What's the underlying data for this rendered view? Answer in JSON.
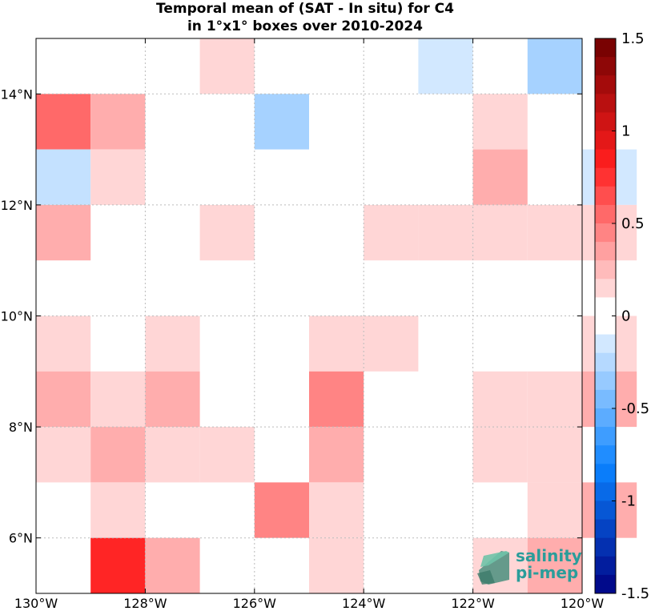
{
  "chart_data": {
    "type": "heatmap",
    "title_lines": [
      "Temporal mean of (SAT - In situ) for C4",
      "in 1°x1° boxes over 2010-2024"
    ],
    "x_ticks": [
      {
        "value": -130,
        "label": "130°W"
      },
      {
        "value": -128,
        "label": "128°W"
      },
      {
        "value": -126,
        "label": "126°W"
      },
      {
        "value": -124,
        "label": "124°W"
      },
      {
        "value": -122,
        "label": "122°W"
      },
      {
        "value": -120,
        "label": "120°W"
      }
    ],
    "y_ticks": [
      {
        "value": 6,
        "label": "6°N"
      },
      {
        "value": 8,
        "label": "8°N"
      },
      {
        "value": 10,
        "label": "10°N"
      },
      {
        "value": 12,
        "label": "12°N"
      },
      {
        "value": 14,
        "label": "14°N"
      }
    ],
    "xlim": [
      -130,
      -120
    ],
    "ylim": [
      5,
      15
    ],
    "grid": true,
    "colorbar": {
      "range": [
        -1.5,
        1.5
      ],
      "ticks": [
        {
          "value": 1.5,
          "label": "1.5"
        },
        {
          "value": 1.0,
          "label": "1"
        },
        {
          "value": 0.5,
          "label": "0.5"
        },
        {
          "value": 0.0,
          "label": "0"
        },
        {
          "value": -0.5,
          "label": "-0.5"
        },
        {
          "value": -1.0,
          "label": "-1"
        },
        {
          "value": -1.5,
          "label": "-1.5"
        }
      ]
    },
    "cells": [
      {
        "lon": -127,
        "lat": 14,
        "value": 0.15
      },
      {
        "lon": -123,
        "lat": 14,
        "value": -0.15
      },
      {
        "lon": -121,
        "lat": 14,
        "value": -0.3
      },
      {
        "lon": -130,
        "lat": 13,
        "value": 0.55
      },
      {
        "lon": -129,
        "lat": 13,
        "value": 0.3
      },
      {
        "lon": -126,
        "lat": 13,
        "value": -0.3
      },
      {
        "lon": -122,
        "lat": 13,
        "value": 0.15
      },
      {
        "lon": -130,
        "lat": 12,
        "value": -0.2
      },
      {
        "lon": -129,
        "lat": 12,
        "value": 0.15
      },
      {
        "lon": -122,
        "lat": 12,
        "value": 0.3
      },
      {
        "lon": -120,
        "lat": 12,
        "value": -0.15
      },
      {
        "lon": -130,
        "lat": 11,
        "value": 0.3
      },
      {
        "lon": -127,
        "lat": 11,
        "value": 0.15
      },
      {
        "lon": -124,
        "lat": 11,
        "value": 0.15
      },
      {
        "lon": -123,
        "lat": 11,
        "value": 0.15
      },
      {
        "lon": -122,
        "lat": 11,
        "value": 0.15
      },
      {
        "lon": -121,
        "lat": 11,
        "value": 0.15
      },
      {
        "lon": -120,
        "lat": 11,
        "value": 0.15
      },
      {
        "lon": -130,
        "lat": 9,
        "value": 0.15
      },
      {
        "lon": -128,
        "lat": 9,
        "value": 0.15
      },
      {
        "lon": -125,
        "lat": 9,
        "value": 0.15
      },
      {
        "lon": -124,
        "lat": 9,
        "value": 0.15
      },
      {
        "lon": -120,
        "lat": 9,
        "value": 0.15
      },
      {
        "lon": -130,
        "lat": 8,
        "value": 0.3
      },
      {
        "lon": -129,
        "lat": 8,
        "value": 0.15
      },
      {
        "lon": -128,
        "lat": 8,
        "value": 0.3
      },
      {
        "lon": -125,
        "lat": 8,
        "value": 0.45
      },
      {
        "lon": -122,
        "lat": 8,
        "value": 0.15
      },
      {
        "lon": -121,
        "lat": 8,
        "value": 0.15
      },
      {
        "lon": -120,
        "lat": 8,
        "value": 0.3
      },
      {
        "lon": -130,
        "lat": 7,
        "value": 0.15
      },
      {
        "lon": -129,
        "lat": 7,
        "value": 0.3
      },
      {
        "lon": -128,
        "lat": 7,
        "value": 0.15
      },
      {
        "lon": -127,
        "lat": 7,
        "value": 0.15
      },
      {
        "lon": -125,
        "lat": 7,
        "value": 0.3
      },
      {
        "lon": -122,
        "lat": 7,
        "value": 0.15
      },
      {
        "lon": -121,
        "lat": 7,
        "value": 0.15
      },
      {
        "lon": -129,
        "lat": 6,
        "value": 0.15
      },
      {
        "lon": -126,
        "lat": 6,
        "value": 0.45
      },
      {
        "lon": -125,
        "lat": 6,
        "value": 0.15
      },
      {
        "lon": -121,
        "lat": 6,
        "value": 0.15
      },
      {
        "lon": -120,
        "lat": 6,
        "value": 0.3
      },
      {
        "lon": -129,
        "lat": 5,
        "value": 0.8
      },
      {
        "lon": -128,
        "lat": 5,
        "value": 0.3
      },
      {
        "lon": -125,
        "lat": 5,
        "value": 0.15
      },
      {
        "lon": -122,
        "lat": 5,
        "value": 0.15
      },
      {
        "lon": -121,
        "lat": 5,
        "value": 0.3
      }
    ]
  },
  "logo": {
    "line1": "salinity",
    "line2": "pi-mep",
    "accent": "#2a9d9a"
  }
}
